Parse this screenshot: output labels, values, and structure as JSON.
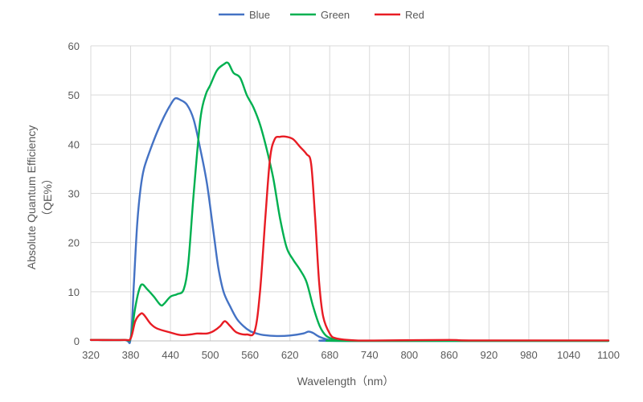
{
  "chart_data": {
    "type": "line",
    "xlabel": "Wavelength（nm）",
    "ylabel": [
      "Absolute Quantum Efficiency",
      "（QE%）"
    ],
    "xlim": [
      320,
      1100
    ],
    "ylim": [
      0,
      60
    ],
    "x_ticks": [
      320,
      380,
      440,
      500,
      560,
      620,
      680,
      740,
      800,
      860,
      920,
      980,
      1040,
      1100
    ],
    "y_ticks": [
      0,
      10,
      20,
      30,
      40,
      50,
      60
    ],
    "grid": "vertical and horizontal",
    "legend_position": "top-center",
    "series": [
      {
        "name": "Blue",
        "color": "#4472C4",
        "points": [
          [
            320,
            0.2
          ],
          [
            370,
            0.2
          ],
          [
            380,
            0.5
          ],
          [
            385,
            12
          ],
          [
            390,
            24
          ],
          [
            395,
            31
          ],
          [
            400,
            35
          ],
          [
            410,
            39
          ],
          [
            420,
            42.5
          ],
          [
            430,
            45.5
          ],
          [
            440,
            48
          ],
          [
            447,
            49.3
          ],
          [
            455,
            49
          ],
          [
            465,
            48
          ],
          [
            475,
            45
          ],
          [
            485,
            39
          ],
          [
            495,
            32
          ],
          [
            505,
            22
          ],
          [
            512,
            15
          ],
          [
            520,
            10
          ],
          [
            530,
            7
          ],
          [
            540,
            4.5
          ],
          [
            550,
            3
          ],
          [
            560,
            2
          ],
          [
            570,
            1.5
          ],
          [
            580,
            1.2
          ],
          [
            600,
            1
          ],
          [
            620,
            1.1
          ],
          [
            640,
            1.5
          ],
          [
            648,
            1.9
          ],
          [
            655,
            1.6
          ],
          [
            665,
            0.8
          ],
          [
            680,
            0.2
          ],
          [
            700,
            0
          ],
          [
            1100,
            0
          ]
        ]
      },
      {
        "name": "Green",
        "color": "#00B050",
        "points": [
          [
            320,
            0.2
          ],
          [
            370,
            0.2
          ],
          [
            380,
            0.5
          ],
          [
            386,
            6
          ],
          [
            392,
            10
          ],
          [
            397,
            11.5
          ],
          [
            405,
            10.5
          ],
          [
            415,
            9
          ],
          [
            425,
            7.3
          ],
          [
            430,
            7.5
          ],
          [
            440,
            9
          ],
          [
            450,
            9.5
          ],
          [
            460,
            10.5
          ],
          [
            467,
            16
          ],
          [
            475,
            30
          ],
          [
            485,
            45
          ],
          [
            493,
            50
          ],
          [
            500,
            52
          ],
          [
            510,
            55
          ],
          [
            520,
            56.2
          ],
          [
            527,
            56.5
          ],
          [
            535,
            54.5
          ],
          [
            545,
            53.5
          ],
          [
            555,
            50
          ],
          [
            565,
            47.5
          ],
          [
            575,
            44
          ],
          [
            585,
            39
          ],
          [
            595,
            33
          ],
          [
            605,
            25
          ],
          [
            615,
            19
          ],
          [
            625,
            16.5
          ],
          [
            635,
            14.5
          ],
          [
            645,
            12
          ],
          [
            655,
            7
          ],
          [
            665,
            3
          ],
          [
            675,
            1
          ],
          [
            690,
            0.2
          ],
          [
            710,
            0
          ],
          [
            1100,
            0
          ]
        ]
      },
      {
        "name": "Red",
        "color": "#E81C24",
        "points": [
          [
            320,
            0.2
          ],
          [
            370,
            0.2
          ],
          [
            380,
            0.5
          ],
          [
            387,
            4
          ],
          [
            395,
            5.5
          ],
          [
            400,
            5.3
          ],
          [
            410,
            3.5
          ],
          [
            420,
            2.5
          ],
          [
            440,
            1.7
          ],
          [
            455,
            1.2
          ],
          [
            470,
            1.3
          ],
          [
            480,
            1.5
          ],
          [
            495,
            1.5
          ],
          [
            505,
            2
          ],
          [
            515,
            3
          ],
          [
            522,
            4
          ],
          [
            530,
            3
          ],
          [
            540,
            1.7
          ],
          [
            555,
            1.3
          ],
          [
            567,
            2
          ],
          [
            575,
            10
          ],
          [
            583,
            25
          ],
          [
            590,
            37
          ],
          [
            597,
            41
          ],
          [
            605,
            41.5
          ],
          [
            615,
            41.5
          ],
          [
            625,
            41
          ],
          [
            635,
            39.5
          ],
          [
            645,
            38
          ],
          [
            652,
            36
          ],
          [
            658,
            25
          ],
          [
            664,
            12
          ],
          [
            670,
            5
          ],
          [
            680,
            1.5
          ],
          [
            690,
            0.5
          ],
          [
            720,
            0.1
          ],
          [
            760,
            0.1
          ],
          [
            860,
            0.2
          ],
          [
            900,
            0.1
          ],
          [
            1100,
            0.1
          ]
        ]
      }
    ]
  }
}
